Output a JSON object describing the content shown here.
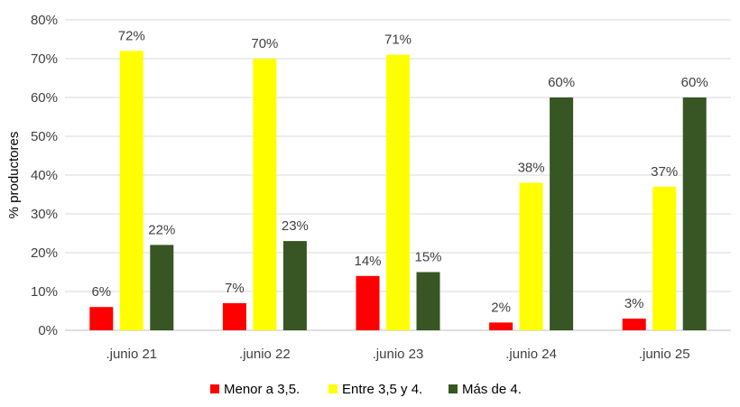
{
  "chart_data": {
    "type": "bar",
    "ylabel": "% productores",
    "xlabel": "",
    "ylim": [
      0,
      80
    ],
    "yticks": [
      "0%",
      "10%",
      "20%",
      "30%",
      "40%",
      "50%",
      "60%",
      "70%",
      "80%"
    ],
    "categories": [
      ".junio 21",
      ".junio 22",
      ".junio 23",
      ".junio 24",
      ".junio 25"
    ],
    "series": [
      {
        "name": "Menor a 3,5.",
        "color": "#ff0000",
        "values": [
          6,
          7,
          14,
          2,
          3
        ],
        "labels": [
          "6%",
          "7%",
          "14%",
          "2%",
          "3%"
        ]
      },
      {
        "name": "Entre 3,5 y 4.",
        "color": "#ffff00",
        "values": [
          72,
          70,
          71,
          38,
          37
        ],
        "labels": [
          "72%",
          "70%",
          "71%",
          "38%",
          "37%"
        ]
      },
      {
        "name": "Más de 4.",
        "color": "#375623",
        "values": [
          22,
          23,
          15,
          60,
          60
        ],
        "labels": [
          "22%",
          "23%",
          "15%",
          "60%",
          "60%"
        ]
      }
    ],
    "grid": true,
    "legend_position": "bottom"
  }
}
